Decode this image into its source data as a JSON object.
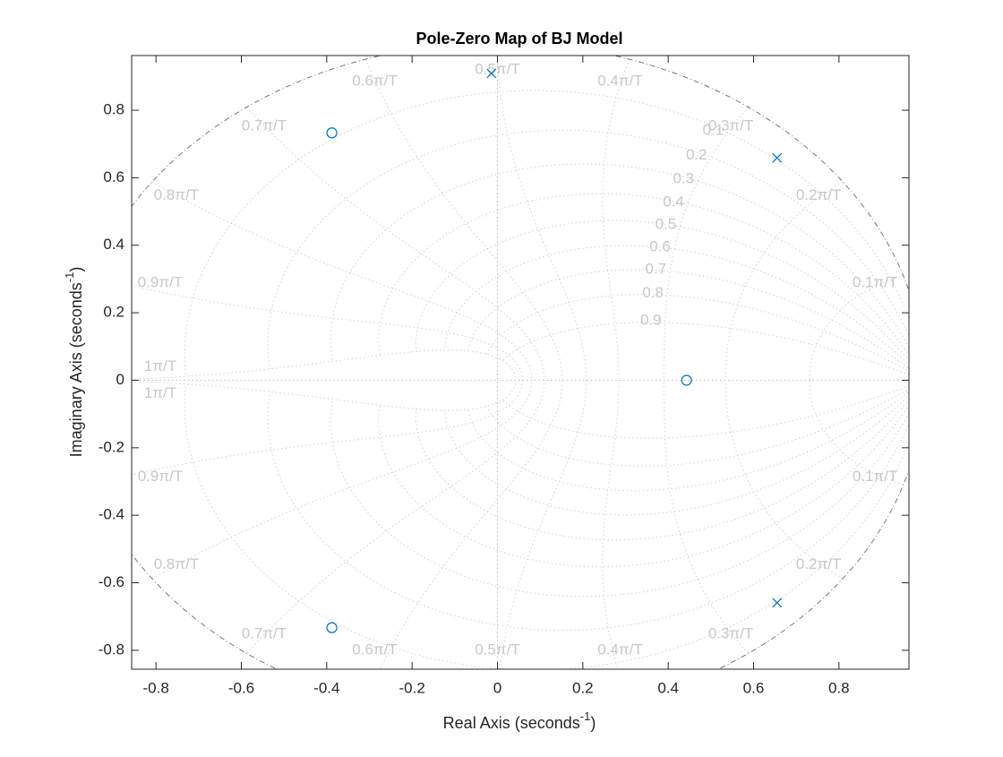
{
  "chart_data": {
    "type": "pole-zero",
    "title": "Pole-Zero Map of BJ Model",
    "x_label": {
      "text": "Real Axis (seconds",
      "sup": "-1",
      "end": ")"
    },
    "y_label": {
      "text": "Imaginary Axis (seconds",
      "sup": "-1",
      "end": ")"
    },
    "xlim": [
      -0.857,
      0.964
    ],
    "ylim": [
      -0.856,
      0.962
    ],
    "xticks": [
      -0.8,
      -0.6,
      -0.4,
      -0.2,
      0,
      0.2,
      0.4,
      0.6,
      0.8
    ],
    "yticks": [
      -0.8,
      -0.6,
      -0.4,
      -0.2,
      0,
      0.2,
      0.4,
      0.6,
      0.8
    ],
    "color": "#0072bd",
    "poles": {
      "x": [
        -0.014,
        0.655,
        0.655
      ],
      "y": [
        0.909,
        0.659,
        -0.659
      ]
    },
    "zeros": {
      "x": [
        -0.388,
        -0.388,
        0.443
      ],
      "y": [
        0.733,
        -0.733,
        0
      ]
    },
    "damping_grid": [
      0.1,
      0.2,
      0.3,
      0.4,
      0.5,
      0.6,
      0.7,
      0.8,
      0.9
    ],
    "frequency_grid": [
      {
        "value": 0.1,
        "label": "0.1π/T"
      },
      {
        "value": 0.2,
        "label": "0.2π/T"
      },
      {
        "value": 0.3,
        "label": "0.3π/T"
      },
      {
        "value": 0.4,
        "label": "0.4π/T"
      },
      {
        "value": 0.5,
        "label": "0.5π/T"
      },
      {
        "value": 0.6,
        "label": "0.6π/T"
      },
      {
        "value": 0.7,
        "label": "0.7π/T"
      },
      {
        "value": 0.8,
        "label": "0.8π/T"
      },
      {
        "value": 0.9,
        "label": "0.9π/T"
      },
      {
        "value": 1,
        "label": "1π/T"
      }
    ]
  }
}
